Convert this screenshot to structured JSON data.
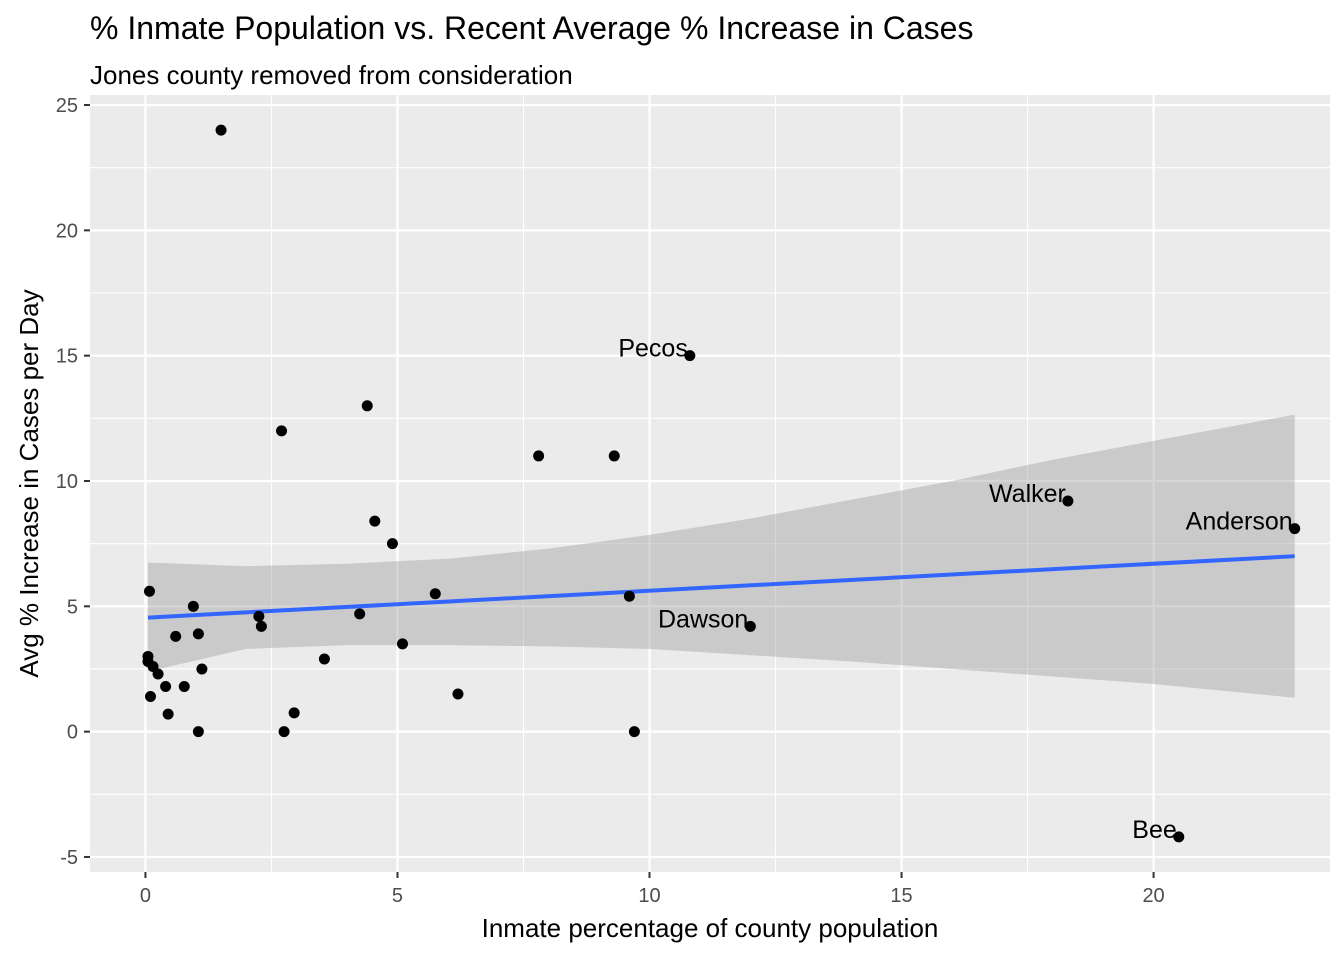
{
  "chart_data": {
    "type": "scatter",
    "title": "% Inmate Population vs. Recent Average % Increase in Cases",
    "subtitle": "Jones county removed from consideration",
    "xlabel": "Inmate percentage of county population",
    "ylabel": "Avg % Increase in Cases per Day",
    "xlim": [
      -1.1,
      23.5
    ],
    "ylim": [
      -5.6,
      25.4
    ],
    "x_ticks": [
      0,
      5,
      10,
      15,
      20
    ],
    "x_tick_labels": [
      "0",
      "5",
      "10",
      "15",
      "20"
    ],
    "y_ticks": [
      -5,
      0,
      5,
      10,
      15,
      20,
      25
    ],
    "y_tick_labels": [
      "-5",
      "0",
      "5",
      "10",
      "15",
      "20",
      "25"
    ],
    "grid": true,
    "points": [
      {
        "x": 1.5,
        "y": 24.0
      },
      {
        "x": 0.08,
        "y": 5.6
      },
      {
        "x": 0.05,
        "y": 3.0
      },
      {
        "x": 0.05,
        "y": 2.8
      },
      {
        "x": 0.15,
        "y": 2.6
      },
      {
        "x": 0.25,
        "y": 2.3
      },
      {
        "x": 0.1,
        "y": 1.4
      },
      {
        "x": 0.4,
        "y": 1.8
      },
      {
        "x": 0.45,
        "y": 0.7
      },
      {
        "x": 0.6,
        "y": 3.8
      },
      {
        "x": 0.77,
        "y": 1.8
      },
      {
        "x": 0.95,
        "y": 5.0
      },
      {
        "x": 1.05,
        "y": 3.9
      },
      {
        "x": 1.05,
        "y": 0.0
      },
      {
        "x": 1.12,
        "y": 2.5
      },
      {
        "x": 2.25,
        "y": 4.6
      },
      {
        "x": 2.3,
        "y": 4.2
      },
      {
        "x": 2.7,
        "y": 12.0
      },
      {
        "x": 2.75,
        "y": 0.0
      },
      {
        "x": 2.95,
        "y": 0.75
      },
      {
        "x": 3.55,
        "y": 2.9
      },
      {
        "x": 4.25,
        "y": 4.7
      },
      {
        "x": 4.4,
        "y": 13.0
      },
      {
        "x": 4.55,
        "y": 8.4
      },
      {
        "x": 4.9,
        "y": 7.5
      },
      {
        "x": 5.1,
        "y": 3.5
      },
      {
        "x": 5.75,
        "y": 5.5
      },
      {
        "x": 6.2,
        "y": 1.5
      },
      {
        "x": 7.8,
        "y": 11.0
      },
      {
        "x": 9.3,
        "y": 11.0
      },
      {
        "x": 9.6,
        "y": 5.4
      },
      {
        "x": 9.7,
        "y": 0.0
      },
      {
        "x": 10.8,
        "y": 15.0,
        "label": "Pecos"
      },
      {
        "x": 12.0,
        "y": 4.2,
        "label": "Dawson"
      },
      {
        "x": 18.3,
        "y": 9.2,
        "label": "Walker"
      },
      {
        "x": 20.5,
        "y": -4.2,
        "label": "Bee"
      },
      {
        "x": 22.8,
        "y": 8.1,
        "label": "Anderson"
      }
    ],
    "trend_line": {
      "x": [
        0.05,
        22.8
      ],
      "y": [
        4.55,
        7.0
      ]
    },
    "confidence_band": {
      "x": [
        0.05,
        2,
        4,
        6,
        8,
        10,
        12,
        14,
        16,
        18,
        20,
        22.8
      ],
      "lower": [
        2.4,
        3.3,
        3.45,
        3.45,
        3.4,
        3.3,
        3.05,
        2.8,
        2.5,
        2.2,
        1.9,
        1.35
      ],
      "upper": [
        6.75,
        6.6,
        6.7,
        6.9,
        7.3,
        7.85,
        8.5,
        9.25,
        10.0,
        10.85,
        11.6,
        12.65
      ]
    },
    "colors": {
      "panel": "#ebebeb",
      "grid": "#ffffff",
      "point": "#000000",
      "trend": "#3366ff",
      "band": "#999999"
    }
  }
}
